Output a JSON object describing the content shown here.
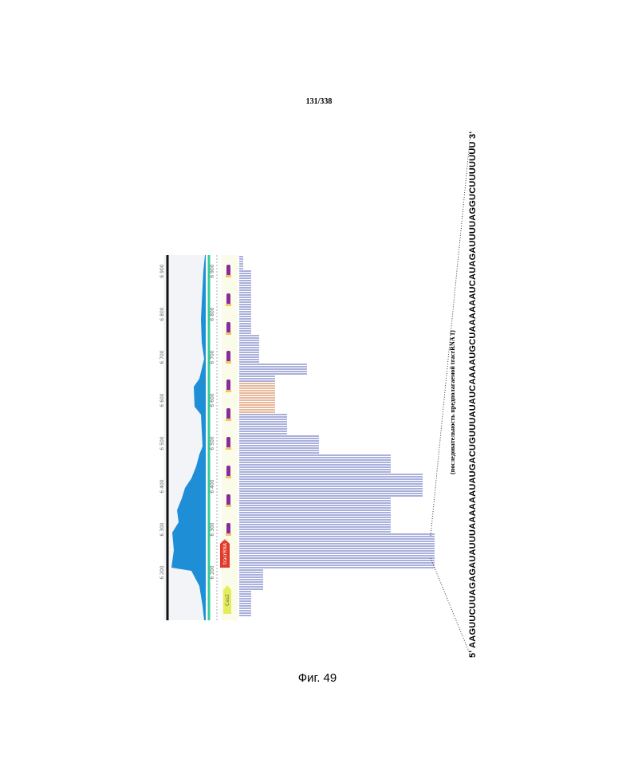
{
  "header": {
    "page": "131/338"
  },
  "figure": {
    "ruler_labels": [
      "6 200",
      "6 300",
      "6 400",
      "6 500",
      "6 600",
      "6 700",
      "6 800",
      "6 900"
    ],
    "genes": [
      "Cas2",
      "tracrRNA 1"
    ],
    "sequence": "5' AAGUUCUUAGAGAUAUUUAAAAAAUAUGACUGUUUAUAUCAAAAUGCUAAAAAAUCAUAGAUUUUAGGUCUUUUUUU 3'",
    "sequence_caption": "(последовательность предполагаемой tracrRNA 1)",
    "caption": "Фиг. 49"
  }
}
